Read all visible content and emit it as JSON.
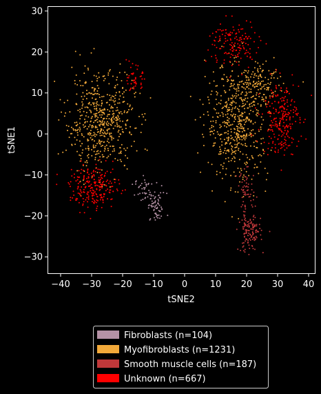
{
  "chart_data": {
    "type": "scatter",
    "xlabel": "tSNE2",
    "ylabel": "tSNE1",
    "xlim": [
      -44,
      42
    ],
    "ylim": [
      -34,
      31
    ],
    "xticks": [
      -40,
      -30,
      -20,
      -10,
      0,
      10,
      20,
      30,
      40
    ],
    "xtick_labels": [
      "−40",
      "−30",
      "−20",
      "−10",
      "0",
      "10",
      "20",
      "30",
      "40"
    ],
    "yticks": [
      -30,
      -20,
      -10,
      0,
      10,
      20,
      30
    ],
    "ytick_labels": [
      "−30",
      "−20",
      "−10",
      "0",
      "10",
      "20",
      "30"
    ],
    "grid": false,
    "legend_position": "below",
    "background": "#000000",
    "series": [
      {
        "name": "Fibroblasts (n=104)",
        "color": "#b592a6",
        "n": 104,
        "clusters": [
          {
            "cx": -9,
            "cy": -18,
            "sx": 1.6,
            "sy": 1.8,
            "n": 60
          },
          {
            "cx": -13,
            "cy": -14,
            "sx": 1.5,
            "sy": 1.8,
            "n": 44
          }
        ]
      },
      {
        "name": "Myofibroblasts (n=1231)",
        "color": "#f2a93a",
        "n": 1231,
        "clusters": [
          {
            "cx": -27,
            "cy": 3,
            "sx": 5.5,
            "sy": 6.0,
            "n": 560
          },
          {
            "cx": 17,
            "cy": 3,
            "sx": 5.0,
            "sy": 7.0,
            "n": 560
          },
          {
            "cx": 24,
            "cy": 12,
            "sx": 4.0,
            "sy": 2.0,
            "n": 111
          }
        ]
      },
      {
        "name": "Smooth muscle cells (n=187)",
        "color": "#c0383a",
        "n": 187,
        "clusters": [
          {
            "cx": 21,
            "cy": -24,
            "sx": 1.8,
            "sy": 2.4,
            "n": 130
          },
          {
            "cx": 20,
            "cy": -14,
            "sx": 1.5,
            "sy": 2.5,
            "n": 57
          }
        ]
      },
      {
        "name": "Unknown (n=667)",
        "color": "#ff0000",
        "n": 667,
        "clusters": [
          {
            "cx": -29,
            "cy": -13,
            "sx": 4.0,
            "sy": 2.6,
            "n": 230
          },
          {
            "cx": 31,
            "cy": 4,
            "sx": 3.0,
            "sy": 4.5,
            "n": 240
          },
          {
            "cx": 16,
            "cy": 22,
            "sx": 4.0,
            "sy": 3.0,
            "n": 150
          },
          {
            "cx": -16,
            "cy": 13,
            "sx": 1.2,
            "sy": 1.6,
            "n": 47
          }
        ]
      }
    ]
  }
}
